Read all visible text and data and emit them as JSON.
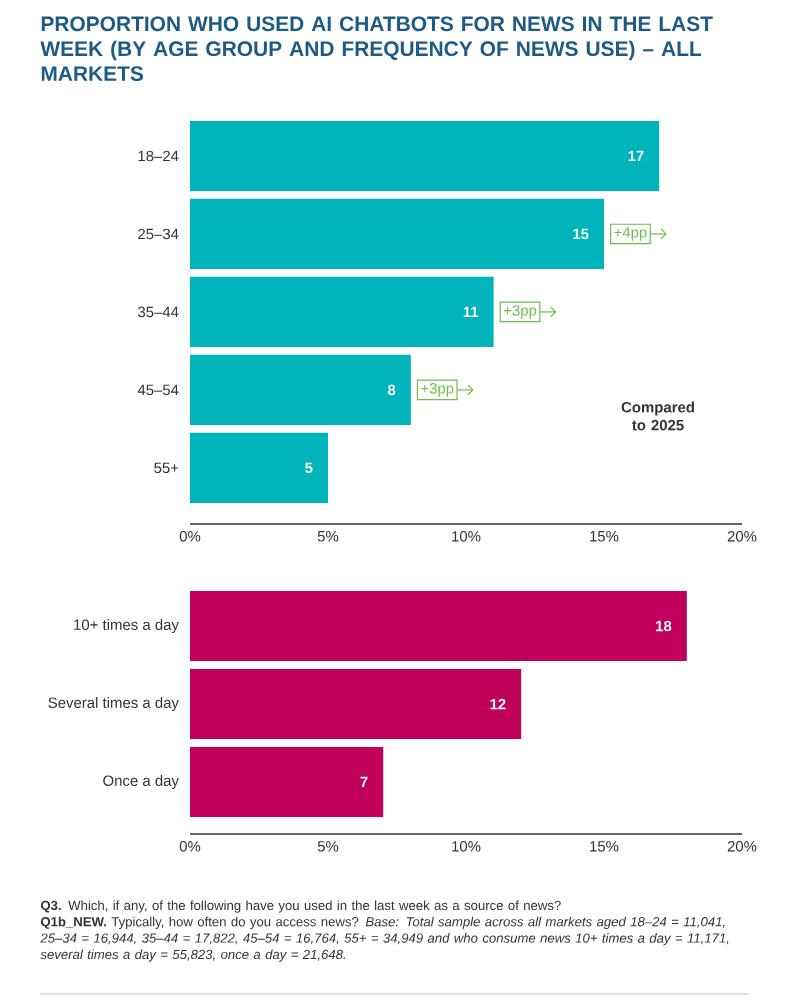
{
  "chart_data": [
    {
      "type": "bar",
      "orientation": "horizontal",
      "title": "PROPORTION WHO USED AI CHATBOTS FOR NEWS IN THE LAST WEEK (BY AGE GROUP AND FREQUENCY OF NEWS USE) – ALL MARKETS",
      "categories": [
        "18–24",
        "25–34",
        "35–44",
        "45–54",
        "55+"
      ],
      "values": [
        17,
        15,
        11,
        8,
        5
      ],
      "color": "#00b4bc",
      "xlim": [
        0,
        20
      ],
      "xticks": [
        {
          "value": 0,
          "label": "0%"
        },
        {
          "value": 5,
          "label": "5%"
        },
        {
          "value": 10,
          "label": "10%"
        },
        {
          "value": 15,
          "label": "15%"
        },
        {
          "value": 20,
          "label": "20%"
        }
      ],
      "data_labels": true,
      "annotations": [
        {
          "text": "+4pp",
          "x": 15,
          "y": "25–34"
        },
        {
          "text": "+3pp",
          "x": 11,
          "y": "35–44"
        },
        {
          "text": "+3pp",
          "x": 8,
          "y": "45–54"
        },
        "Compared to 2025"
      ]
    },
    {
      "type": "bar",
      "orientation": "horizontal",
      "categories": [
        "10+ times a day",
        "Several times a day",
        "Once a day"
      ],
      "values": [
        18,
        12,
        7
      ],
      "color": "#c0005a",
      "xlim": [
        0,
        20
      ],
      "xticks": [
        {
          "value": 0,
          "label": "0%"
        },
        {
          "value": 5,
          "label": "5%"
        },
        {
          "value": 10,
          "label": "10%"
        },
        {
          "value": 15,
          "label": "15%"
        },
        {
          "value": 20,
          "label": "20%"
        }
      ],
      "data_labels": true,
      "annotations": [
        "**Q3.** Which, if any, of the following have you used in the last week as a source of news?",
        "**Q1b_NEW.** Typically, how often do you access news? *Base: Total sample across all markets aged 18–24 = 11,041, 25–34 = 16,944, 35–44 = 17,822, 45–54 = 16,764, 55+ = 34,949 and who consume news 10+ times a day = 11,171, several times a day = 55,823, once a day = 21,648.*"
      ]
    }
  ]
}
